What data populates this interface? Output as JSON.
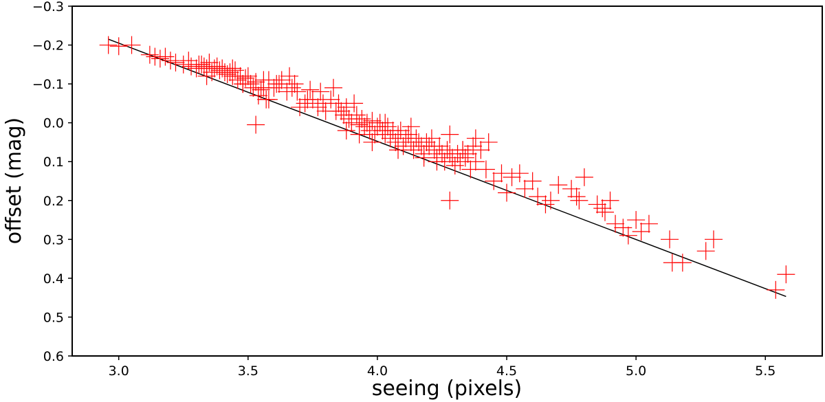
{
  "chart_data": {
    "type": "scatter",
    "title": "",
    "xlabel": "seeing (pixels)",
    "ylabel": "offset (mag)",
    "xlim": [
      2.82,
      5.72
    ],
    "ylim": [
      0.6,
      -0.3
    ],
    "y_axis_inverted": true,
    "xticks": [
      "3.0",
      "3.5",
      "4.0",
      "4.5",
      "5.0",
      "5.5"
    ],
    "yticks": [
      "−0.3",
      "−0.2",
      "−0.1",
      "0.0",
      "0.1",
      "0.2",
      "0.3",
      "0.4",
      "0.5",
      "0.6"
    ],
    "grid": false,
    "legend": "none",
    "colors": {
      "points": "#ff0000",
      "fit_line": "#000000",
      "axes": "#000000"
    },
    "marker": "plus",
    "fit_line": {
      "x": [
        2.96,
        5.58
      ],
      "y": [
        -0.215,
        0.447
      ]
    },
    "points": {
      "x": [
        2.96,
        3.0,
        3.05,
        3.12,
        3.14,
        3.16,
        3.18,
        3.2,
        3.22,
        3.25,
        3.27,
        3.28,
        3.3,
        3.31,
        3.32,
        3.33,
        3.34,
        3.35,
        3.36,
        3.37,
        3.38,
        3.39,
        3.4,
        3.41,
        3.42,
        3.43,
        3.44,
        3.45,
        3.46,
        3.47,
        3.48,
        3.49,
        3.5,
        3.51,
        3.52,
        3.53,
        3.54,
        3.55,
        3.56,
        3.57,
        3.58,
        3.6,
        3.62,
        3.63,
        3.65,
        3.67,
        3.68,
        3.7,
        3.72,
        3.74,
        3.75,
        3.77,
        3.78,
        3.8,
        3.82,
        3.83,
        3.85,
        3.86,
        3.87,
        3.88,
        3.89,
        3.9,
        3.91,
        3.92,
        3.93,
        3.94,
        3.95,
        3.96,
        3.97,
        3.98,
        3.99,
        4.0,
        4.01,
        4.02,
        4.03,
        4.04,
        4.05,
        4.06,
        4.07,
        4.08,
        4.09,
        4.1,
        4.11,
        4.12,
        4.13,
        4.14,
        4.15,
        4.16,
        4.17,
        4.18,
        4.19,
        4.2,
        4.21,
        4.22,
        4.23,
        4.24,
        4.25,
        4.26,
        4.27,
        4.28,
        4.29,
        4.3,
        4.31,
        4.32,
        4.33,
        4.34,
        4.35,
        4.36,
        4.37,
        4.38,
        4.4,
        4.42,
        4.45,
        4.48,
        4.5,
        4.52,
        4.55,
        4.57,
        4.6,
        4.62,
        4.65,
        4.67,
        4.7,
        4.75,
        4.77,
        4.78,
        4.8,
        4.85,
        4.87,
        4.88,
        4.9,
        4.92,
        4.95,
        4.97,
        5.0,
        5.02,
        5.05,
        5.13,
        5.14,
        5.18,
        5.27,
        5.3,
        5.54,
        5.58,
        3.34,
        3.44,
        3.48,
        3.56,
        3.58,
        3.61,
        3.66,
        3.69,
        3.73,
        3.79,
        3.84,
        3.88,
        3.93,
        3.98,
        4.03,
        4.08,
        4.13,
        4.18,
        4.23,
        4.28,
        4.33,
        4.38,
        4.43,
        4.28,
        3.53
      ],
      "y": [
        -0.2,
        -0.197,
        -0.2,
        -0.175,
        -0.17,
        -0.165,
        -0.17,
        -0.16,
        -0.155,
        -0.15,
        -0.16,
        -0.145,
        -0.14,
        -0.15,
        -0.15,
        -0.145,
        -0.14,
        -0.155,
        -0.13,
        -0.14,
        -0.145,
        -0.135,
        -0.14,
        -0.13,
        -0.125,
        -0.13,
        -0.12,
        -0.135,
        -0.11,
        -0.12,
        -0.1,
        -0.115,
        -0.12,
        -0.1,
        -0.09,
        -0.105,
        -0.07,
        -0.085,
        -0.11,
        -0.06,
        -0.11,
        -0.09,
        -0.1,
        -0.11,
        -0.08,
        -0.09,
        -0.1,
        -0.04,
        -0.05,
        -0.085,
        -0.06,
        -0.04,
        -0.08,
        -0.03,
        -0.06,
        -0.09,
        -0.05,
        -0.03,
        -0.02,
        -0.04,
        -0.01,
        0.0,
        -0.05,
        -0.02,
        0.005,
        -0.01,
        0.01,
        0.0,
        0.02,
        -0.005,
        0.03,
        0.01,
        0.0,
        0.02,
        0.03,
        0.01,
        0.04,
        0.02,
        0.05,
        0.03,
        0.02,
        0.06,
        0.04,
        0.03,
        0.05,
        0.07,
        0.04,
        0.05,
        0.06,
        0.08,
        0.05,
        0.06,
        0.04,
        0.07,
        0.09,
        0.06,
        0.08,
        0.1,
        0.07,
        0.08,
        0.09,
        0.11,
        0.08,
        0.1,
        0.07,
        0.09,
        0.08,
        0.12,
        0.06,
        0.1,
        0.07,
        0.12,
        0.15,
        0.13,
        0.18,
        0.14,
        0.13,
        0.17,
        0.15,
        0.19,
        0.21,
        0.2,
        0.16,
        0.17,
        0.19,
        0.2,
        0.14,
        0.21,
        0.22,
        0.23,
        0.2,
        0.26,
        0.27,
        0.29,
        0.25,
        0.28,
        0.26,
        0.3,
        0.36,
        0.36,
        0.33,
        0.3,
        0.43,
        0.39,
        -0.12,
        -0.14,
        -0.1,
        -0.09,
        -0.06,
        -0.1,
        -0.12,
        -0.08,
        -0.06,
        -0.05,
        -0.03,
        0.02,
        0.03,
        0.05,
        0.0,
        0.07,
        0.01,
        0.09,
        0.1,
        0.03,
        0.07,
        0.04,
        0.05,
        0.2,
        0.005
      ]
    }
  }
}
